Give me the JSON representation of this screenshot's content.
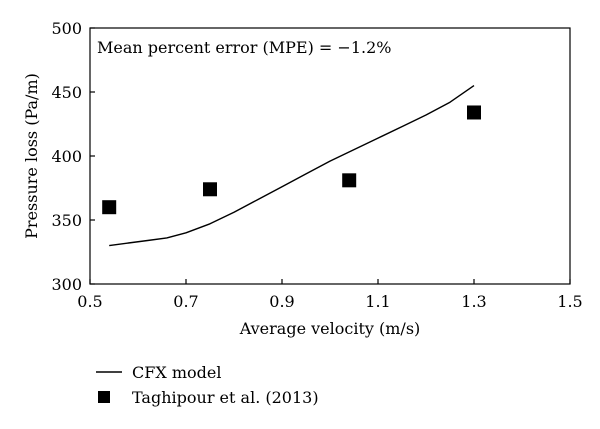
{
  "chart_data": {
    "type": "line",
    "annotation": "Mean percent error (MPE) = −1.2%",
    "xlabel": "Average velocity (m/s)",
    "ylabel": "Pressure loss (Pa/m)",
    "xlim": [
      0.5,
      1.5
    ],
    "ylim": [
      300,
      500
    ],
    "xticks": [
      "0.5",
      "0.7",
      "0.9",
      "1.1",
      "1.3",
      "1.5"
    ],
    "yticks": [
      "300",
      "350",
      "400",
      "450",
      "500"
    ],
    "grid": false,
    "legend_position": "bottom-left",
    "series": [
      {
        "name": "CFX model",
        "kind": "line",
        "color": "#000000",
        "x": [
          0.54,
          0.58,
          0.62,
          0.66,
          0.7,
          0.75,
          0.8,
          0.85,
          0.9,
          0.95,
          1.0,
          1.05,
          1.1,
          1.15,
          1.2,
          1.25,
          1.3
        ],
        "y": [
          330,
          332,
          334,
          336,
          340,
          347,
          356,
          366,
          376,
          386,
          396,
          405,
          414,
          423,
          432,
          442,
          455
        ]
      },
      {
        "name": "Taghipour et al. (2013)",
        "kind": "scatter",
        "marker": "square",
        "color": "#000000",
        "x": [
          0.54,
          0.75,
          1.04,
          1.3
        ],
        "y": [
          360,
          374,
          381,
          434
        ]
      }
    ]
  }
}
